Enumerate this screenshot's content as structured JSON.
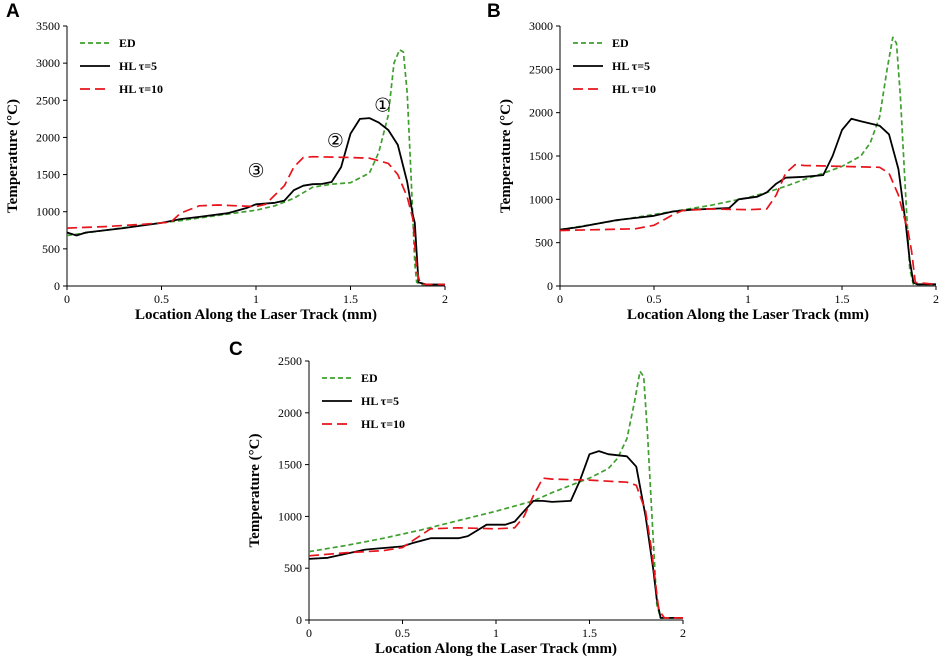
{
  "panel_labels": [
    "A",
    "B",
    "C"
  ],
  "chart_data": [
    {
      "id": "A",
      "type": "line",
      "title": "",
      "xlabel": "Location Along the Laser Track (mm)",
      "ylabel": "Temperature (°C)",
      "xlim": [
        0,
        2
      ],
      "ylim": [
        0,
        3500
      ],
      "xticks": [
        0,
        0.5,
        1,
        1.5,
        2
      ],
      "xtick_labels": [
        "0",
        "0.5",
        "1",
        "1.5",
        "2"
      ],
      "yticks": [
        0,
        500,
        1000,
        1500,
        2000,
        2500,
        3000,
        3500
      ],
      "ytick_labels": [
        "0",
        "500",
        "1000",
        "1500",
        "2000",
        "2500",
        "3000",
        "3500"
      ],
      "grid": false,
      "legend_position": "top-left",
      "series": [
        {
          "name": "ED",
          "color": "#3f9f2f",
          "dash": "dashed",
          "x": [
            0,
            0.2,
            0.4,
            0.6,
            0.8,
            1.0,
            1.1,
            1.2,
            1.3,
            1.4,
            1.5,
            1.6,
            1.65,
            1.7,
            1.73,
            1.76,
            1.78,
            1.8,
            1.82,
            1.84,
            1.85,
            1.87,
            1.9,
            2.0
          ],
          "y": [
            680,
            750,
            820,
            880,
            950,
            1020,
            1080,
            1180,
            1330,
            1370,
            1390,
            1520,
            1800,
            2300,
            3000,
            3180,
            3150,
            2600,
            1500,
            300,
            50,
            20,
            20,
            20
          ]
        },
        {
          "name": "HL τ=5",
          "color": "#000000",
          "dash": "solid",
          "x": [
            0,
            0.05,
            0.1,
            0.3,
            0.5,
            0.6,
            0.7,
            0.85,
            0.95,
            1.0,
            1.1,
            1.15,
            1.2,
            1.25,
            1.3,
            1.35,
            1.4,
            1.45,
            1.5,
            1.55,
            1.6,
            1.65,
            1.7,
            1.75,
            1.8,
            1.83,
            1.84,
            1.86,
            1.9,
            2.0
          ],
          "y": [
            720,
            680,
            720,
            780,
            850,
            900,
            930,
            980,
            1050,
            1100,
            1120,
            1150,
            1290,
            1350,
            1370,
            1375,
            1400,
            1600,
            2050,
            2250,
            2260,
            2200,
            2100,
            1900,
            1400,
            950,
            850,
            50,
            20,
            20
          ]
        },
        {
          "name": "HL τ=10",
          "color": "#e8141c",
          "dash": "dashed",
          "x": [
            0,
            0.2,
            0.4,
            0.55,
            0.6,
            0.7,
            0.8,
            0.9,
            1.0,
            1.05,
            1.15,
            1.2,
            1.25,
            1.3,
            1.5,
            1.6,
            1.7,
            1.75,
            1.8,
            1.83,
            1.85,
            1.87,
            1.9,
            2.0
          ],
          "y": [
            780,
            800,
            830,
            860,
            980,
            1080,
            1090,
            1080,
            1070,
            1100,
            1350,
            1600,
            1730,
            1740,
            1730,
            1720,
            1650,
            1500,
            1200,
            900,
            200,
            30,
            20,
            20
          ]
        }
      ],
      "annotations": [
        {
          "text": "①",
          "x": 1.67,
          "y": 2350
        },
        {
          "text": "②",
          "x": 1.42,
          "y": 1870
        },
        {
          "text": "③",
          "x": 1.0,
          "y": 1470
        }
      ]
    },
    {
      "id": "B",
      "type": "line",
      "title": "",
      "xlabel": "Location Along the Laser Track (mm)",
      "ylabel": "Temperature (°C)",
      "xlim": [
        0,
        2
      ],
      "ylim": [
        0,
        3000
      ],
      "xticks": [
        0,
        0.5,
        1,
        1.5,
        2
      ],
      "xtick_labels": [
        "0",
        "0.5",
        "1",
        "1.5",
        "2"
      ],
      "yticks": [
        0,
        500,
        1000,
        1500,
        2000,
        2500,
        3000
      ],
      "ytick_labels": [
        "0",
        "500",
        "1000",
        "1500",
        "2000",
        "2500",
        "3000"
      ],
      "grid": false,
      "legend_position": "top-left",
      "series": [
        {
          "name": "ED",
          "color": "#3f9f2f",
          "dash": "dashed",
          "x": [
            0,
            0.2,
            0.4,
            0.6,
            0.8,
            1.0,
            1.1,
            1.2,
            1.3,
            1.4,
            1.5,
            1.6,
            1.65,
            1.7,
            1.74,
            1.77,
            1.79,
            1.81,
            1.84,
            1.86,
            1.88,
            2.0
          ],
          "y": [
            650,
            720,
            790,
            860,
            930,
            1020,
            1080,
            1150,
            1230,
            1300,
            1380,
            1500,
            1650,
            1950,
            2500,
            2870,
            2800,
            2200,
            1000,
            200,
            20,
            20
          ]
        },
        {
          "name": "HL τ=5",
          "color": "#000000",
          "dash": "solid",
          "x": [
            0,
            0.1,
            0.3,
            0.5,
            0.6,
            0.7,
            0.8,
            0.9,
            0.95,
            1.05,
            1.1,
            1.15,
            1.2,
            1.3,
            1.4,
            1.45,
            1.5,
            1.55,
            1.6,
            1.7,
            1.75,
            1.8,
            1.84,
            1.86,
            1.88,
            1.9,
            2.0
          ],
          "y": [
            650,
            680,
            760,
            810,
            860,
            880,
            890,
            900,
            1000,
            1030,
            1080,
            1180,
            1250,
            1260,
            1280,
            1500,
            1800,
            1930,
            1900,
            1850,
            1750,
            1350,
            700,
            300,
            40,
            20,
            20
          ]
        },
        {
          "name": "HL τ=10",
          "color": "#e8141c",
          "dash": "dashed",
          "x": [
            0,
            0.4,
            0.5,
            0.6,
            0.65,
            0.8,
            1.0,
            1.1,
            1.15,
            1.2,
            1.25,
            1.3,
            1.5,
            1.7,
            1.75,
            1.8,
            1.83,
            1.85,
            1.87,
            1.89,
            2.0
          ],
          "y": [
            640,
            660,
            700,
            820,
            870,
            890,
            880,
            890,
            1050,
            1300,
            1400,
            1390,
            1380,
            1370,
            1300,
            1050,
            800,
            650,
            400,
            40,
            20
          ]
        }
      ],
      "annotations": []
    },
    {
      "id": "C",
      "type": "line",
      "title": "",
      "xlabel": "Location Along the Laser Track (mm)",
      "ylabel": "Temperature (°C)",
      "xlim": [
        0,
        2
      ],
      "ylim": [
        0,
        2500
      ],
      "xticks": [
        0,
        0.5,
        1,
        1.5,
        2
      ],
      "xtick_labels": [
        "0",
        "0.5",
        "1",
        "1.5",
        "2"
      ],
      "yticks": [
        0,
        500,
        1000,
        1500,
        2000,
        2500
      ],
      "ytick_labels": [
        "0",
        "500",
        "1000",
        "1500",
        "2000",
        "2500"
      ],
      "grid": false,
      "legend_position": "top-left",
      "series": [
        {
          "name": "ED",
          "color": "#3f9f2f",
          "dash": "dashed",
          "x": [
            0,
            0.2,
            0.4,
            0.6,
            0.8,
            1.0,
            1.2,
            1.3,
            1.4,
            1.5,
            1.6,
            1.65,
            1.7,
            1.74,
            1.77,
            1.79,
            1.81,
            1.84,
            1.86,
            1.88,
            2.0
          ],
          "y": [
            660,
            720,
            790,
            870,
            960,
            1050,
            1150,
            1230,
            1300,
            1370,
            1460,
            1560,
            1750,
            2100,
            2400,
            2350,
            1800,
            800,
            150,
            20,
            20
          ]
        },
        {
          "name": "HL τ=5",
          "color": "#000000",
          "dash": "solid",
          "x": [
            0,
            0.1,
            0.3,
            0.5,
            0.55,
            0.65,
            0.8,
            0.85,
            0.95,
            1.05,
            1.1,
            1.15,
            1.2,
            1.25,
            1.3,
            1.4,
            1.45,
            1.5,
            1.55,
            1.6,
            1.7,
            1.75,
            1.8,
            1.84,
            1.86,
            1.88,
            2.0
          ],
          "y": [
            590,
            600,
            680,
            710,
            740,
            790,
            790,
            810,
            920,
            920,
            950,
            1050,
            1150,
            1150,
            1140,
            1150,
            1350,
            1600,
            1630,
            1600,
            1580,
            1480,
            1000,
            500,
            200,
            20,
            20
          ]
        },
        {
          "name": "HL τ=10",
          "color": "#e8141c",
          "dash": "dashed",
          "x": [
            0,
            0.2,
            0.4,
            0.5,
            0.6,
            0.65,
            0.8,
            1.0,
            1.1,
            1.15,
            1.2,
            1.25,
            1.3,
            1.5,
            1.6,
            1.7,
            1.75,
            1.8,
            1.83,
            1.85,
            1.87,
            1.9,
            2.0
          ],
          "y": [
            620,
            650,
            670,
            700,
            820,
            880,
            890,
            880,
            890,
            1000,
            1200,
            1370,
            1360,
            1350,
            1340,
            1330,
            1300,
            1050,
            700,
            400,
            100,
            20,
            20
          ]
        }
      ],
      "annotations": []
    }
  ]
}
